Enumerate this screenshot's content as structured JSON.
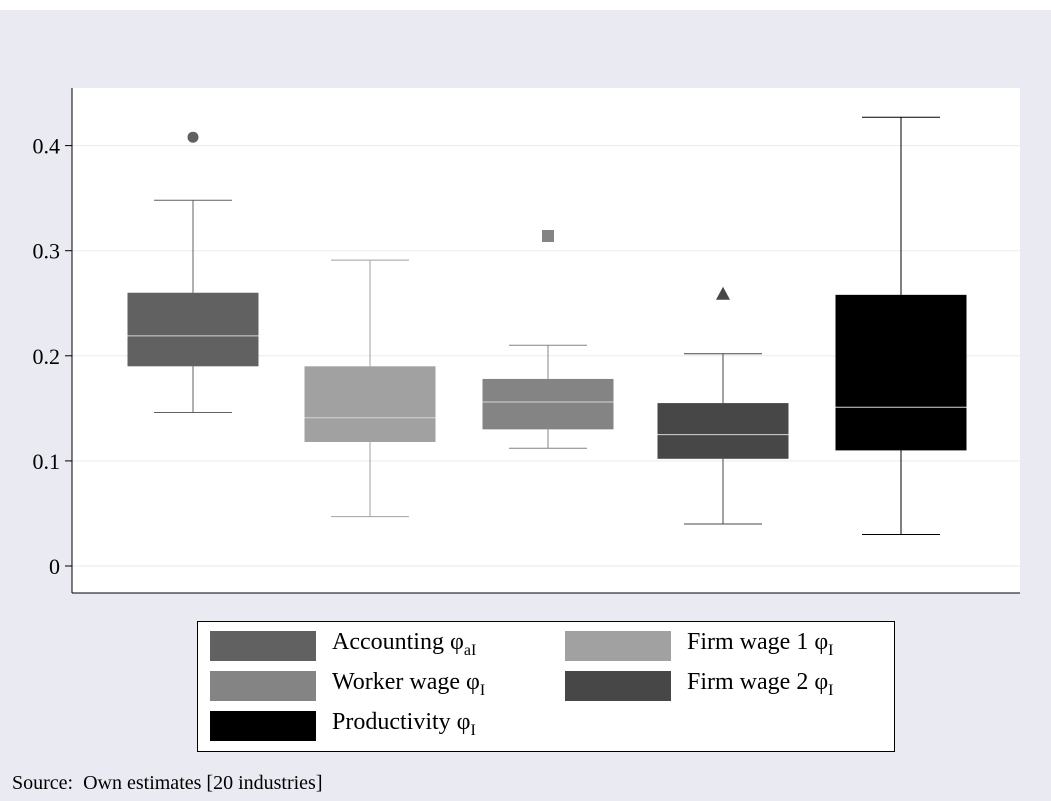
{
  "chart_data": {
    "type": "boxplot",
    "ylim": [
      0,
      0.45
    ],
    "yticks": [
      0,
      0.1,
      0.2,
      0.3,
      0.4
    ],
    "ytick_labels": [
      "0",
      "0.1",
      "0.2",
      "0.3",
      "0.4"
    ],
    "grid": true,
    "legend_position": "bottom",
    "series": [
      {
        "label": "Accounting ",
        "symbol": "φ",
        "subscript": "aI",
        "color": "#616161",
        "whisker_low": 0.146,
        "q1": 0.19,
        "median": 0.219,
        "q3": 0.26,
        "whisker_high": 0.348,
        "outliers": [
          0.408
        ],
        "outlier_marker": "circle"
      },
      {
        "label": "Firm wage 1 ",
        "symbol": "φ",
        "subscript": "I",
        "color": "#a1a1a1",
        "whisker_low": 0.047,
        "q1": 0.118,
        "median": 0.141,
        "q3": 0.19,
        "whisker_high": 0.291,
        "outliers": [],
        "outlier_marker": ""
      },
      {
        "label": "Worker wage ",
        "symbol": "φ",
        "subscript": "I",
        "color": "#848484",
        "whisker_low": 0.112,
        "q1": 0.13,
        "median": 0.156,
        "q3": 0.178,
        "whisker_high": 0.21,
        "outliers": [
          0.314
        ],
        "outlier_marker": "square"
      },
      {
        "label": "Firm wage 2 ",
        "symbol": "φ",
        "subscript": "I",
        "color": "#474747",
        "whisker_low": 0.04,
        "q1": 0.102,
        "median": 0.125,
        "q3": 0.155,
        "whisker_high": 0.202,
        "outliers": [
          0.259
        ],
        "outlier_marker": "triangle"
      },
      {
        "label": "Productivity ",
        "symbol": "φ",
        "subscript": "I",
        "color": "#000000",
        "whisker_low": 0.03,
        "q1": 0.11,
        "median": 0.151,
        "q3": 0.258,
        "whisker_high": 0.427,
        "outliers": [],
        "outlier_marker": ""
      }
    ],
    "note": "Source:  Own estimates [20 industries]"
  }
}
